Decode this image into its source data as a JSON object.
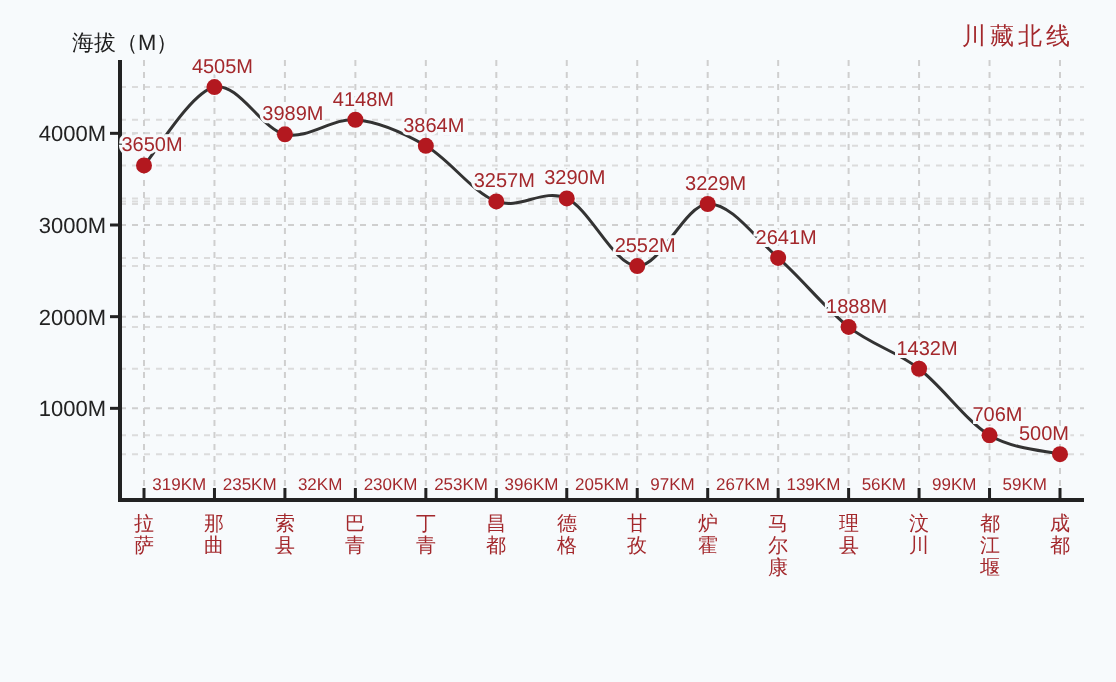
{
  "chart_data": {
    "type": "line",
    "title": "川藏北线",
    "ylabel": "海拔（M）",
    "categories": [
      "拉萨",
      "那曲",
      "索县",
      "巴青",
      "丁青",
      "昌都",
      "德格",
      "甘孜",
      "炉霍",
      "马尔康",
      "理县",
      "汶川",
      "都江堰",
      "成都"
    ],
    "series": [
      {
        "color": "#b3181f",
        "values": [
          3650,
          4505,
          3989,
          4148,
          3864,
          3257,
          3290,
          2552,
          3229,
          2641,
          1888,
          1432,
          706,
          500
        ],
        "value_labels": [
          "3650M",
          "4505M",
          "3989M",
          "4148M",
          "3864M",
          "3257M",
          "3290M",
          "2552M",
          "3229M",
          "2641M",
          "1888M",
          "1432M",
          "706M",
          "500M"
        ]
      }
    ],
    "ylim": [
      0,
      4800
    ],
    "yticks": [
      {
        "value": 1000,
        "label": "1000M"
      },
      {
        "value": 2000,
        "label": "2000M"
      },
      {
        "value": 3000,
        "label": "3000M"
      },
      {
        "value": 4000,
        "label": "4000M"
      }
    ],
    "annotations": [
      "319KM",
      "235KM",
      "32KM",
      "230KM",
      "253KM",
      "396KM",
      "205KM",
      "97KM",
      "267KM",
      "139KM",
      "56KM",
      "99KM",
      "59KM"
    ],
    "marker": "circle",
    "grid": true
  }
}
